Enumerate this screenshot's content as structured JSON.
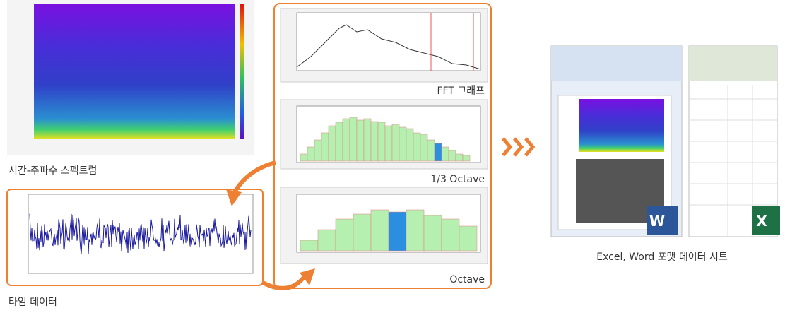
{
  "captions": {
    "spectrogram": "시간-주파수 스펙트럼",
    "time_data": "타임 데이터",
    "fft": "FFT 그래프",
    "third_octave": "1/3 Octave",
    "octave": "Octave",
    "export": "Excel, Word 포맷 데이터 시트"
  },
  "icons": {
    "word": "W",
    "excel": "X"
  }
}
